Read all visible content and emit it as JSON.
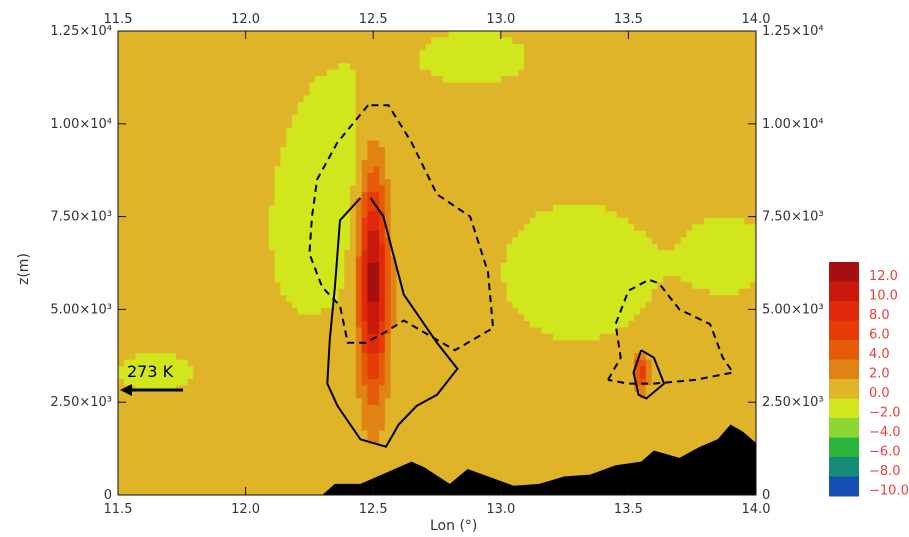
{
  "chart_data": {
    "type": "heatmap",
    "xlabel": "Lon (°)",
    "ylabel": "z(m)",
    "x_range": [
      11.5,
      14.0
    ],
    "y_range": [
      0,
      12500
    ],
    "x_ticks": [
      "11.5",
      "12.0",
      "12.5",
      "13.0",
      "13.5",
      "14.0"
    ],
    "x_tick_values": [
      11.5,
      12.0,
      12.5,
      13.0,
      13.5,
      14.0
    ],
    "y_ticks_left": [
      "0",
      "2.50×10³",
      "5.00×10³",
      "7.50×10³",
      "1.00×10⁴",
      "1.25×10⁴"
    ],
    "y_ticks_right": [
      "0",
      "2.50×10³",
      "5.00×10³",
      "7.50×10³",
      "1.00×10⁴",
      "1.25×10⁴"
    ],
    "y_tick_values": [
      0,
      2500,
      5000,
      7500,
      10000,
      12500
    ],
    "annotation": "273 K",
    "annotation_level_m": 2750,
    "colorbar": {
      "labels": [
        "12.0",
        "10.0",
        "8.0",
        "6.0",
        "4.0",
        "2.0",
        "0.0",
        "−2.0",
        "−4.0",
        "−6.0",
        "−8.0",
        "−10.0"
      ],
      "colors": [
        "#a50f0f",
        "#c8190a",
        "#e0280a",
        "#e63c0a",
        "#e65a0a",
        "#e08214",
        "#e0b428",
        "#d2e61e",
        "#8cd732",
        "#2db43c",
        "#148c78",
        "#1450b4"
      ]
    },
    "features": [
      {
        "name": "main-updraft",
        "peak_value": 12.0,
        "lon": 12.5,
        "z_top_m": 10300,
        "z_max_m": 5800
      },
      {
        "name": "secondary-updraft",
        "peak_value": 8.0,
        "lon": 13.55,
        "z_top_m": 3900,
        "z_max_m": 3300
      }
    ],
    "contours": {
      "solid": [
        [
          [
            12.45,
            8000
          ],
          [
            12.37,
            7400
          ],
          [
            12.35,
            5600
          ],
          [
            12.33,
            4200
          ],
          [
            12.32,
            3000
          ],
          [
            12.36,
            2400
          ],
          [
            12.45,
            1500
          ],
          [
            12.55,
            1300
          ],
          [
            12.6,
            1900
          ],
          [
            12.67,
            2400
          ],
          [
            12.75,
            2700
          ],
          [
            12.83,
            3400
          ],
          [
            12.75,
            4100
          ],
          [
            12.62,
            5400
          ],
          [
            12.54,
            7500
          ],
          [
            12.49,
            8000
          ]
        ],
        [
          [
            13.55,
            3900
          ],
          [
            13.52,
            3300
          ],
          [
            13.54,
            2700
          ],
          [
            13.57,
            2600
          ],
          [
            13.64,
            3000
          ],
          [
            13.6,
            3700
          ],
          [
            13.55,
            3900
          ]
        ]
      ],
      "dashed": [
        [
          [
            12.48,
            10500
          ],
          [
            12.36,
            9500
          ],
          [
            12.28,
            8500
          ],
          [
            12.26,
            7500
          ],
          [
            12.25,
            6500
          ],
          [
            12.3,
            5600
          ],
          [
            12.37,
            5100
          ],
          [
            12.4,
            4100
          ],
          [
            12.47,
            4100
          ],
          [
            12.55,
            4400
          ],
          [
            12.62,
            4700
          ],
          [
            12.72,
            4300
          ],
          [
            12.82,
            3900
          ],
          [
            12.97,
            4500
          ],
          [
            12.95,
            6000
          ],
          [
            12.88,
            7500
          ],
          [
            12.75,
            8100
          ],
          [
            12.65,
            9500
          ],
          [
            12.56,
            10500
          ],
          [
            12.48,
            10500
          ]
        ],
        [
          [
            13.42,
            3100
          ],
          [
            13.47,
            3700
          ],
          [
            13.45,
            4600
          ],
          [
            13.5,
            5500
          ],
          [
            13.58,
            5800
          ],
          [
            13.62,
            5700
          ],
          [
            13.7,
            5000
          ],
          [
            13.82,
            4600
          ],
          [
            13.87,
            3700
          ],
          [
            13.91,
            3300
          ],
          [
            13.76,
            3100
          ],
          [
            13.6,
            3000
          ],
          [
            13.5,
            3000
          ],
          [
            13.42,
            3100
          ]
        ]
      ]
    },
    "terrain": [
      [
        12.3,
        0
      ],
      [
        12.35,
        300
      ],
      [
        12.45,
        300
      ],
      [
        12.55,
        600
      ],
      [
        12.65,
        900
      ],
      [
        12.7,
        750
      ],
      [
        12.8,
        300
      ],
      [
        12.87,
        700
      ],
      [
        12.95,
        500
      ],
      [
        13.05,
        250
      ],
      [
        13.15,
        300
      ],
      [
        13.25,
        500
      ],
      [
        13.35,
        550
      ],
      [
        13.45,
        800
      ],
      [
        13.55,
        900
      ],
      [
        13.6,
        1200
      ],
      [
        13.7,
        1000
      ],
      [
        13.78,
        1300
      ],
      [
        13.85,
        1500
      ],
      [
        13.9,
        1900
      ],
      [
        13.95,
        1700
      ],
      [
        14.0,
        1400
      ],
      [
        14.0,
        0
      ]
    ]
  }
}
